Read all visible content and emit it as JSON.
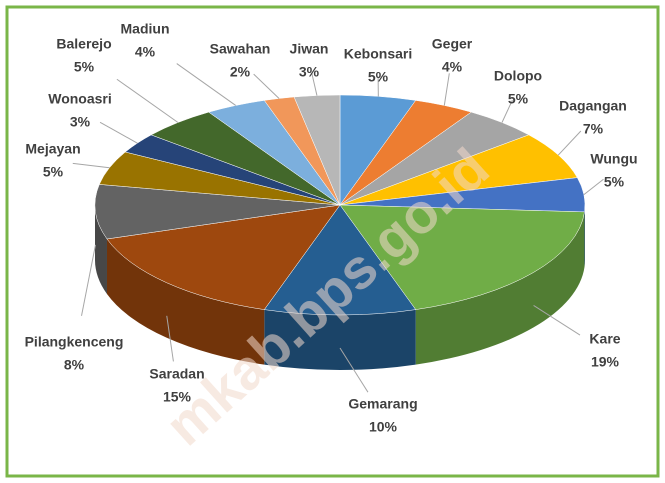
{
  "chart_data": {
    "type": "pie3d",
    "categories": [
      "Kebonsari",
      "Geger",
      "Dolopo",
      "Dagangan",
      "Wungu",
      "Kare",
      "Gemarang",
      "Saradan",
      "Pilangkenceng",
      "Mejayan",
      "Wonoasri",
      "Balerejo",
      "Madiun",
      "Sawahan",
      "Jiwan"
    ],
    "values": [
      5,
      4,
      5,
      7,
      5,
      19,
      10,
      15,
      8,
      5,
      3,
      5,
      4,
      2,
      3
    ],
    "value_labels": [
      "5%",
      "4%",
      "5%",
      "7%",
      "5%",
      "19%",
      "10%",
      "15%",
      "8%",
      "5%",
      "3%",
      "5%",
      "4%",
      "2%",
      "3%"
    ],
    "colors": [
      "#5b9bd5",
      "#ed7d31",
      "#a5a5a5",
      "#ffc000",
      "#4472c4",
      "#70ad47",
      "#255e91",
      "#9e480e",
      "#636363",
      "#997300",
      "#264478",
      "#43682b",
      "#7cafdd",
      "#f1975a",
      "#b7b7b7"
    ],
    "watermark": "mkab.bps.go.id"
  }
}
